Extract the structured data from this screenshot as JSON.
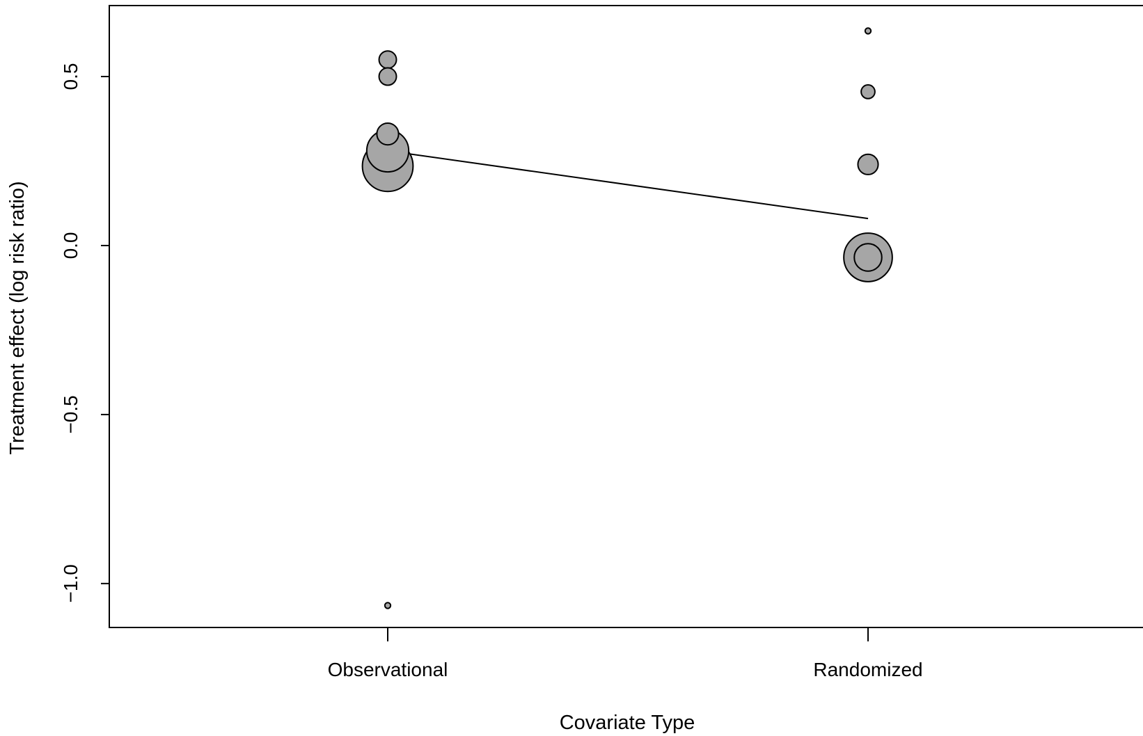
{
  "chart_data": {
    "type": "scatter",
    "title": "",
    "xlabel": "Covariate Type",
    "ylabel": "Treatment effect (log risk ratio)",
    "categories": [
      "Observational",
      "Randomized"
    ],
    "x_ticks": [
      "Observational",
      "Randomized"
    ],
    "y_ticks": [
      "−1.0",
      "−0.5",
      "0.0",
      "0.5"
    ],
    "ylim": [
      -1.13,
      0.71
    ],
    "grid": false,
    "legend": "none",
    "point_fill": "#a6a6a6",
    "point_stroke": "#000000",
    "points": [
      {
        "category": "Observational",
        "y": 0.55,
        "weight": 2.4
      },
      {
        "category": "Observational",
        "y": 0.5,
        "weight": 2.4
      },
      {
        "category": "Observational",
        "y": 0.33,
        "weight": 3.0
      },
      {
        "category": "Observational",
        "y": 0.28,
        "weight": 5.8
      },
      {
        "category": "Observational",
        "y": 0.235,
        "weight": 7.0
      },
      {
        "category": "Observational",
        "y": -1.065,
        "weight": 0.8
      },
      {
        "category": "Randomized",
        "y": 0.635,
        "weight": 0.8
      },
      {
        "category": "Randomized",
        "y": 0.455,
        "weight": 1.9
      },
      {
        "category": "Randomized",
        "y": 0.24,
        "weight": 2.8
      },
      {
        "category": "Randomized",
        "y": -0.035,
        "weight": 6.7
      },
      {
        "category": "Randomized",
        "y": -0.035,
        "weight": 3.8
      }
    ],
    "fit_line": [
      {
        "category": "Observational",
        "y": 0.28
      },
      {
        "category": "Randomized",
        "y": 0.08
      }
    ]
  }
}
